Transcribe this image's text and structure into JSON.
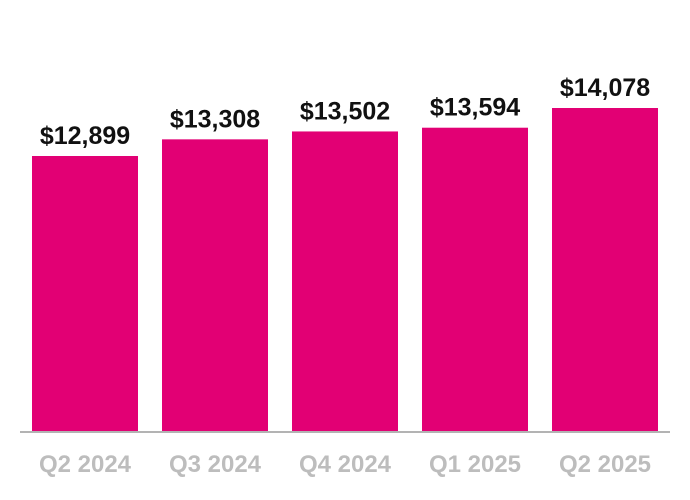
{
  "chart_data": {
    "type": "bar",
    "title": "",
    "xlabel": "",
    "ylabel": "",
    "categories": [
      "Q2 2024",
      "Q3 2024",
      "Q4 2024",
      "Q1 2025",
      "Q2 2025"
    ],
    "values": [
      12899,
      13308,
      13502,
      13594,
      14078
    ],
    "value_labels": [
      "$12,899",
      "$13,308",
      "$13,502",
      "$13,594",
      "$14,078"
    ],
    "ylim": [
      0,
      14078
    ],
    "grid": false,
    "legend": "none",
    "colors": {
      "bar": "#E20074",
      "axis": "#b3b3b3",
      "value_label": "#111111",
      "category_label": "#bdbdbd"
    }
  }
}
